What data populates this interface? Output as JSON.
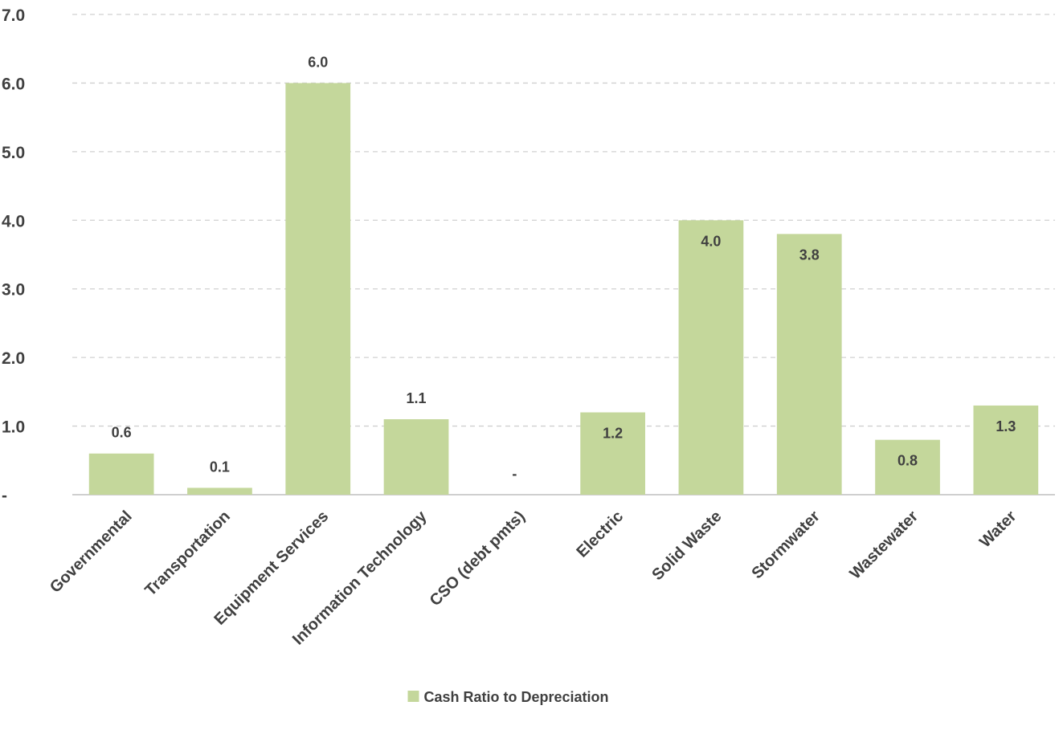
{
  "chart_data": {
    "type": "bar",
    "categories": [
      "Governmental",
      "Transportation",
      "Equipment Services",
      "Information Technology",
      "CSO (debt pmts)",
      "Electric",
      "Solid Waste",
      "Stormwater",
      "Wastewater",
      "Water"
    ],
    "series": [
      {
        "name": "Cash Ratio to Depreciation",
        "values": [
          0.6,
          0.1,
          6.0,
          1.1,
          0.0,
          1.2,
          4.0,
          3.8,
          0.8,
          1.3
        ],
        "labels": [
          "0.6",
          "0.1",
          "6.0",
          "1.1",
          "-",
          "1.2",
          "4.0",
          "3.8",
          "0.8",
          "1.3"
        ],
        "label_position": [
          "outside",
          "outside",
          "outside",
          "outside",
          "outside",
          "inside",
          "inside",
          "inside",
          "inside",
          "inside"
        ],
        "color": "#c4d79b"
      }
    ],
    "ylim": [
      0,
      7
    ],
    "yticks": [
      0,
      1,
      2,
      3,
      4,
      5,
      6,
      7
    ],
    "ytick_labels": [
      "-",
      "1.0",
      "2.0",
      "3.0",
      "4.0",
      "5.0",
      "6.0",
      "7.0"
    ],
    "title": "",
    "xlabel": "",
    "ylabel": "",
    "grid": true,
    "gridline_color": "#d0d0d0",
    "axis_color": "#bfbfbf",
    "text_color": "#404040",
    "legend": {
      "position": "bottom",
      "entries": [
        "Cash Ratio to Depreciation"
      ]
    }
  }
}
